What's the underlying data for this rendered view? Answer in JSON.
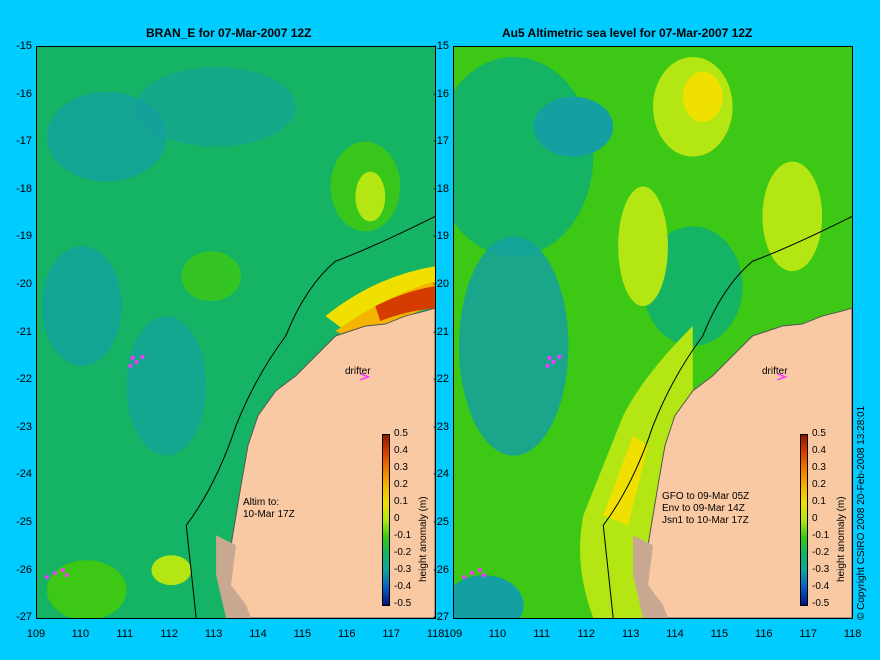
{
  "left_panel": {
    "title": "BRAN_E for 07-Mar-2007 12Z",
    "annotation": "Altim to:\n10-Mar 17Z",
    "drifter_label": "drifter"
  },
  "right_panel": {
    "title": "Au5 Altimetric sea level  for 07-Mar-2007 12Z",
    "annotation": "GFO to 09-Mar 05Z\nEnv to 09-Mar 14Z\nJsn1 to 10-Mar 17Z",
    "drifter_label": "drifter"
  },
  "lat_ticks": [
    "-15",
    "-16",
    "-17",
    "-18",
    "-19",
    "-20",
    "-21",
    "-22",
    "-23",
    "-24",
    "-25",
    "-26",
    "-27"
  ],
  "lon_ticks": [
    "109",
    "110",
    "111",
    "112",
    "113",
    "114",
    "115",
    "116",
    "117",
    "118"
  ],
  "colorbar": {
    "title": "height anomaly (m)",
    "ticks": [
      "0.5",
      "0.4",
      "0.3",
      "0.2",
      "0.1",
      "0",
      "-0.1",
      "-0.2",
      "-0.3",
      "-0.4",
      "-0.5"
    ],
    "colors": [
      "#8b1a00",
      "#d43c00",
      "#f07800",
      "#f5b400",
      "#f0e000",
      "#b4e614",
      "#3cc814",
      "#14b464",
      "#14a0a0",
      "#0a5ac8",
      "#001478"
    ]
  },
  "copyright": "© Copyright CSIRO 2008   20-Feb-2008 13:28:01",
  "colors": {
    "background": "#00ccff",
    "land": "#f9c9a3",
    "shelf": "#c8a890",
    "marker": "#ff33ff"
  }
}
